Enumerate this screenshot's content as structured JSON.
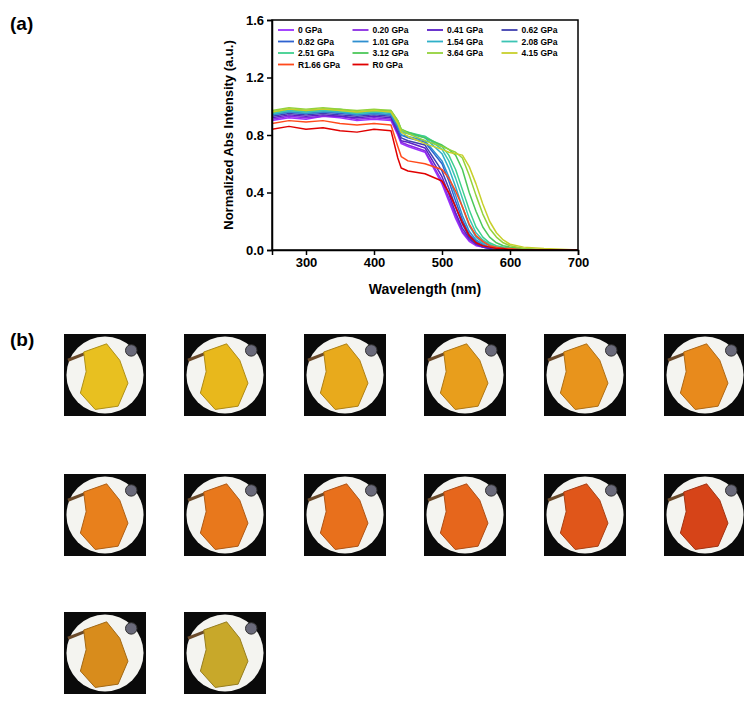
{
  "panel_labels": [
    "(a)",
    "(b)"
  ],
  "chart_data": {
    "type": "line",
    "x_label": "Wavelength (nm)",
    "y_label": "Normalized Abs Intensity (a.u.)",
    "xlim": [
      250,
      700
    ],
    "xticks": [
      300,
      400,
      500,
      600,
      700
    ],
    "ylim": [
      0,
      1.6
    ],
    "yticks": [
      {
        "value": 0,
        "label": "0.0"
      },
      0.4,
      0.8,
      1.2,
      1.6
    ],
    "grid": false,
    "legend": "top",
    "x": [
      250,
      275,
      300,
      325,
      350,
      375,
      400,
      425,
      435,
      440,
      450,
      475,
      500,
      510,
      520,
      530,
      540,
      550,
      560,
      570,
      580,
      590,
      600,
      620,
      650,
      700
    ],
    "series": [
      {
        "name": "0 GPa",
        "color": "#9b30ff",
        "values": [
          0.9,
          0.92,
          0.91,
          0.93,
          0.92,
          0.9,
          0.91,
          0.9,
          0.8,
          0.74,
          0.72,
          0.68,
          0.46,
          0.34,
          0.22,
          0.12,
          0.06,
          0.03,
          0.02,
          0.01,
          0.01,
          0.01,
          0.0,
          0.0,
          0.0,
          0.0
        ]
      },
      {
        "name": "0.20 GPa",
        "color": "#8a2be2",
        "values": [
          0.91,
          0.93,
          0.92,
          0.93,
          0.93,
          0.91,
          0.92,
          0.91,
          0.81,
          0.75,
          0.73,
          0.69,
          0.48,
          0.36,
          0.24,
          0.13,
          0.07,
          0.04,
          0.02,
          0.01,
          0.01,
          0.01,
          0.0,
          0.0,
          0.0,
          0.0
        ]
      },
      {
        "name": "0.41 GPa",
        "color": "#5a1fc8",
        "values": [
          0.92,
          0.94,
          0.93,
          0.94,
          0.93,
          0.92,
          0.93,
          0.92,
          0.82,
          0.76,
          0.75,
          0.71,
          0.51,
          0.39,
          0.26,
          0.15,
          0.08,
          0.04,
          0.02,
          0.01,
          0.01,
          0.01,
          0.0,
          0.0,
          0.0,
          0.0
        ]
      },
      {
        "name": "0.62 GPa",
        "color": "#3f3faf",
        "values": [
          0.93,
          0.95,
          0.94,
          0.95,
          0.94,
          0.93,
          0.94,
          0.93,
          0.84,
          0.78,
          0.76,
          0.73,
          0.55,
          0.43,
          0.3,
          0.18,
          0.09,
          0.05,
          0.03,
          0.02,
          0.01,
          0.01,
          0.0,
          0.0,
          0.0,
          0.0
        ]
      },
      {
        "name": "0.82 GPa",
        "color": "#2f62d0",
        "values": [
          0.94,
          0.96,
          0.95,
          0.96,
          0.95,
          0.94,
          0.95,
          0.94,
          0.85,
          0.8,
          0.78,
          0.75,
          0.6,
          0.48,
          0.34,
          0.21,
          0.11,
          0.06,
          0.03,
          0.02,
          0.01,
          0.01,
          0.01,
          0.0,
          0.0,
          0.0
        ]
      },
      {
        "name": "1.01 GPa",
        "color": "#2f8fd0",
        "values": [
          0.94,
          0.96,
          0.95,
          0.96,
          0.96,
          0.94,
          0.95,
          0.94,
          0.86,
          0.8,
          0.79,
          0.76,
          0.62,
          0.51,
          0.38,
          0.24,
          0.13,
          0.07,
          0.04,
          0.02,
          0.01,
          0.01,
          0.01,
          0.0,
          0.0,
          0.0
        ]
      },
      {
        "name": "1.54 GPa",
        "color": "#2fb0c8",
        "values": [
          0.95,
          0.97,
          0.96,
          0.97,
          0.96,
          0.95,
          0.96,
          0.95,
          0.88,
          0.82,
          0.81,
          0.78,
          0.67,
          0.57,
          0.44,
          0.3,
          0.17,
          0.09,
          0.05,
          0.03,
          0.02,
          0.01,
          0.01,
          0.0,
          0.0,
          0.0
        ]
      },
      {
        "name": "2.08 GPa",
        "color": "#3cc4b4",
        "values": [
          0.95,
          0.97,
          0.96,
          0.97,
          0.97,
          0.95,
          0.96,
          0.96,
          0.88,
          0.82,
          0.81,
          0.79,
          0.7,
          0.62,
          0.5,
          0.36,
          0.22,
          0.12,
          0.07,
          0.04,
          0.02,
          0.01,
          0.01,
          0.0,
          0.0,
          0.0
        ]
      },
      {
        "name": "2.51 GPa",
        "color": "#3ed08e",
        "values": [
          0.96,
          0.98,
          0.97,
          0.98,
          0.97,
          0.96,
          0.97,
          0.96,
          0.89,
          0.83,
          0.82,
          0.79,
          0.72,
          0.66,
          0.56,
          0.42,
          0.28,
          0.16,
          0.09,
          0.05,
          0.03,
          0.02,
          0.01,
          0.0,
          0.0,
          0.0
        ]
      },
      {
        "name": "3.12 GPa",
        "color": "#4cc85a",
        "values": [
          0.96,
          0.98,
          0.97,
          0.98,
          0.98,
          0.96,
          0.97,
          0.97,
          0.9,
          0.84,
          0.82,
          0.78,
          0.73,
          0.7,
          0.66,
          0.56,
          0.4,
          0.27,
          0.16,
          0.09,
          0.05,
          0.03,
          0.02,
          0.01,
          0.0,
          0.0
        ]
      },
      {
        "name": "3.64 GPa",
        "color": "#94d23c",
        "values": [
          0.97,
          0.99,
          0.98,
          0.99,
          0.98,
          0.97,
          0.98,
          0.97,
          0.9,
          0.84,
          0.81,
          0.76,
          0.72,
          0.7,
          0.68,
          0.64,
          0.52,
          0.38,
          0.25,
          0.15,
          0.09,
          0.05,
          0.03,
          0.01,
          0.0,
          0.0
        ]
      },
      {
        "name": "4.15 GPa",
        "color": "#c8d02c",
        "values": [
          0.96,
          0.98,
          0.97,
          0.98,
          0.97,
          0.96,
          0.97,
          0.96,
          0.88,
          0.82,
          0.79,
          0.74,
          0.7,
          0.68,
          0.67,
          0.66,
          0.58,
          0.46,
          0.32,
          0.2,
          0.12,
          0.07,
          0.04,
          0.02,
          0.01,
          0.0
        ]
      },
      {
        "name": "R1.66 GPa",
        "color": "#ff4a1c",
        "values": [
          0.88,
          0.9,
          0.89,
          0.9,
          0.88,
          0.87,
          0.88,
          0.87,
          0.72,
          0.65,
          0.62,
          0.6,
          0.56,
          0.5,
          0.41,
          0.3,
          0.18,
          0.1,
          0.06,
          0.03,
          0.02,
          0.01,
          0.01,
          0.0,
          0.0,
          0.0
        ]
      },
      {
        "name": "R0 GPa",
        "color": "#e00000",
        "values": [
          0.84,
          0.86,
          0.84,
          0.85,
          0.83,
          0.82,
          0.84,
          0.83,
          0.64,
          0.57,
          0.55,
          0.53,
          0.48,
          0.4,
          0.3,
          0.19,
          0.1,
          0.05,
          0.03,
          0.02,
          0.01,
          0.01,
          0.0,
          0.0,
          0.0,
          0.0
        ]
      }
    ]
  }
}
